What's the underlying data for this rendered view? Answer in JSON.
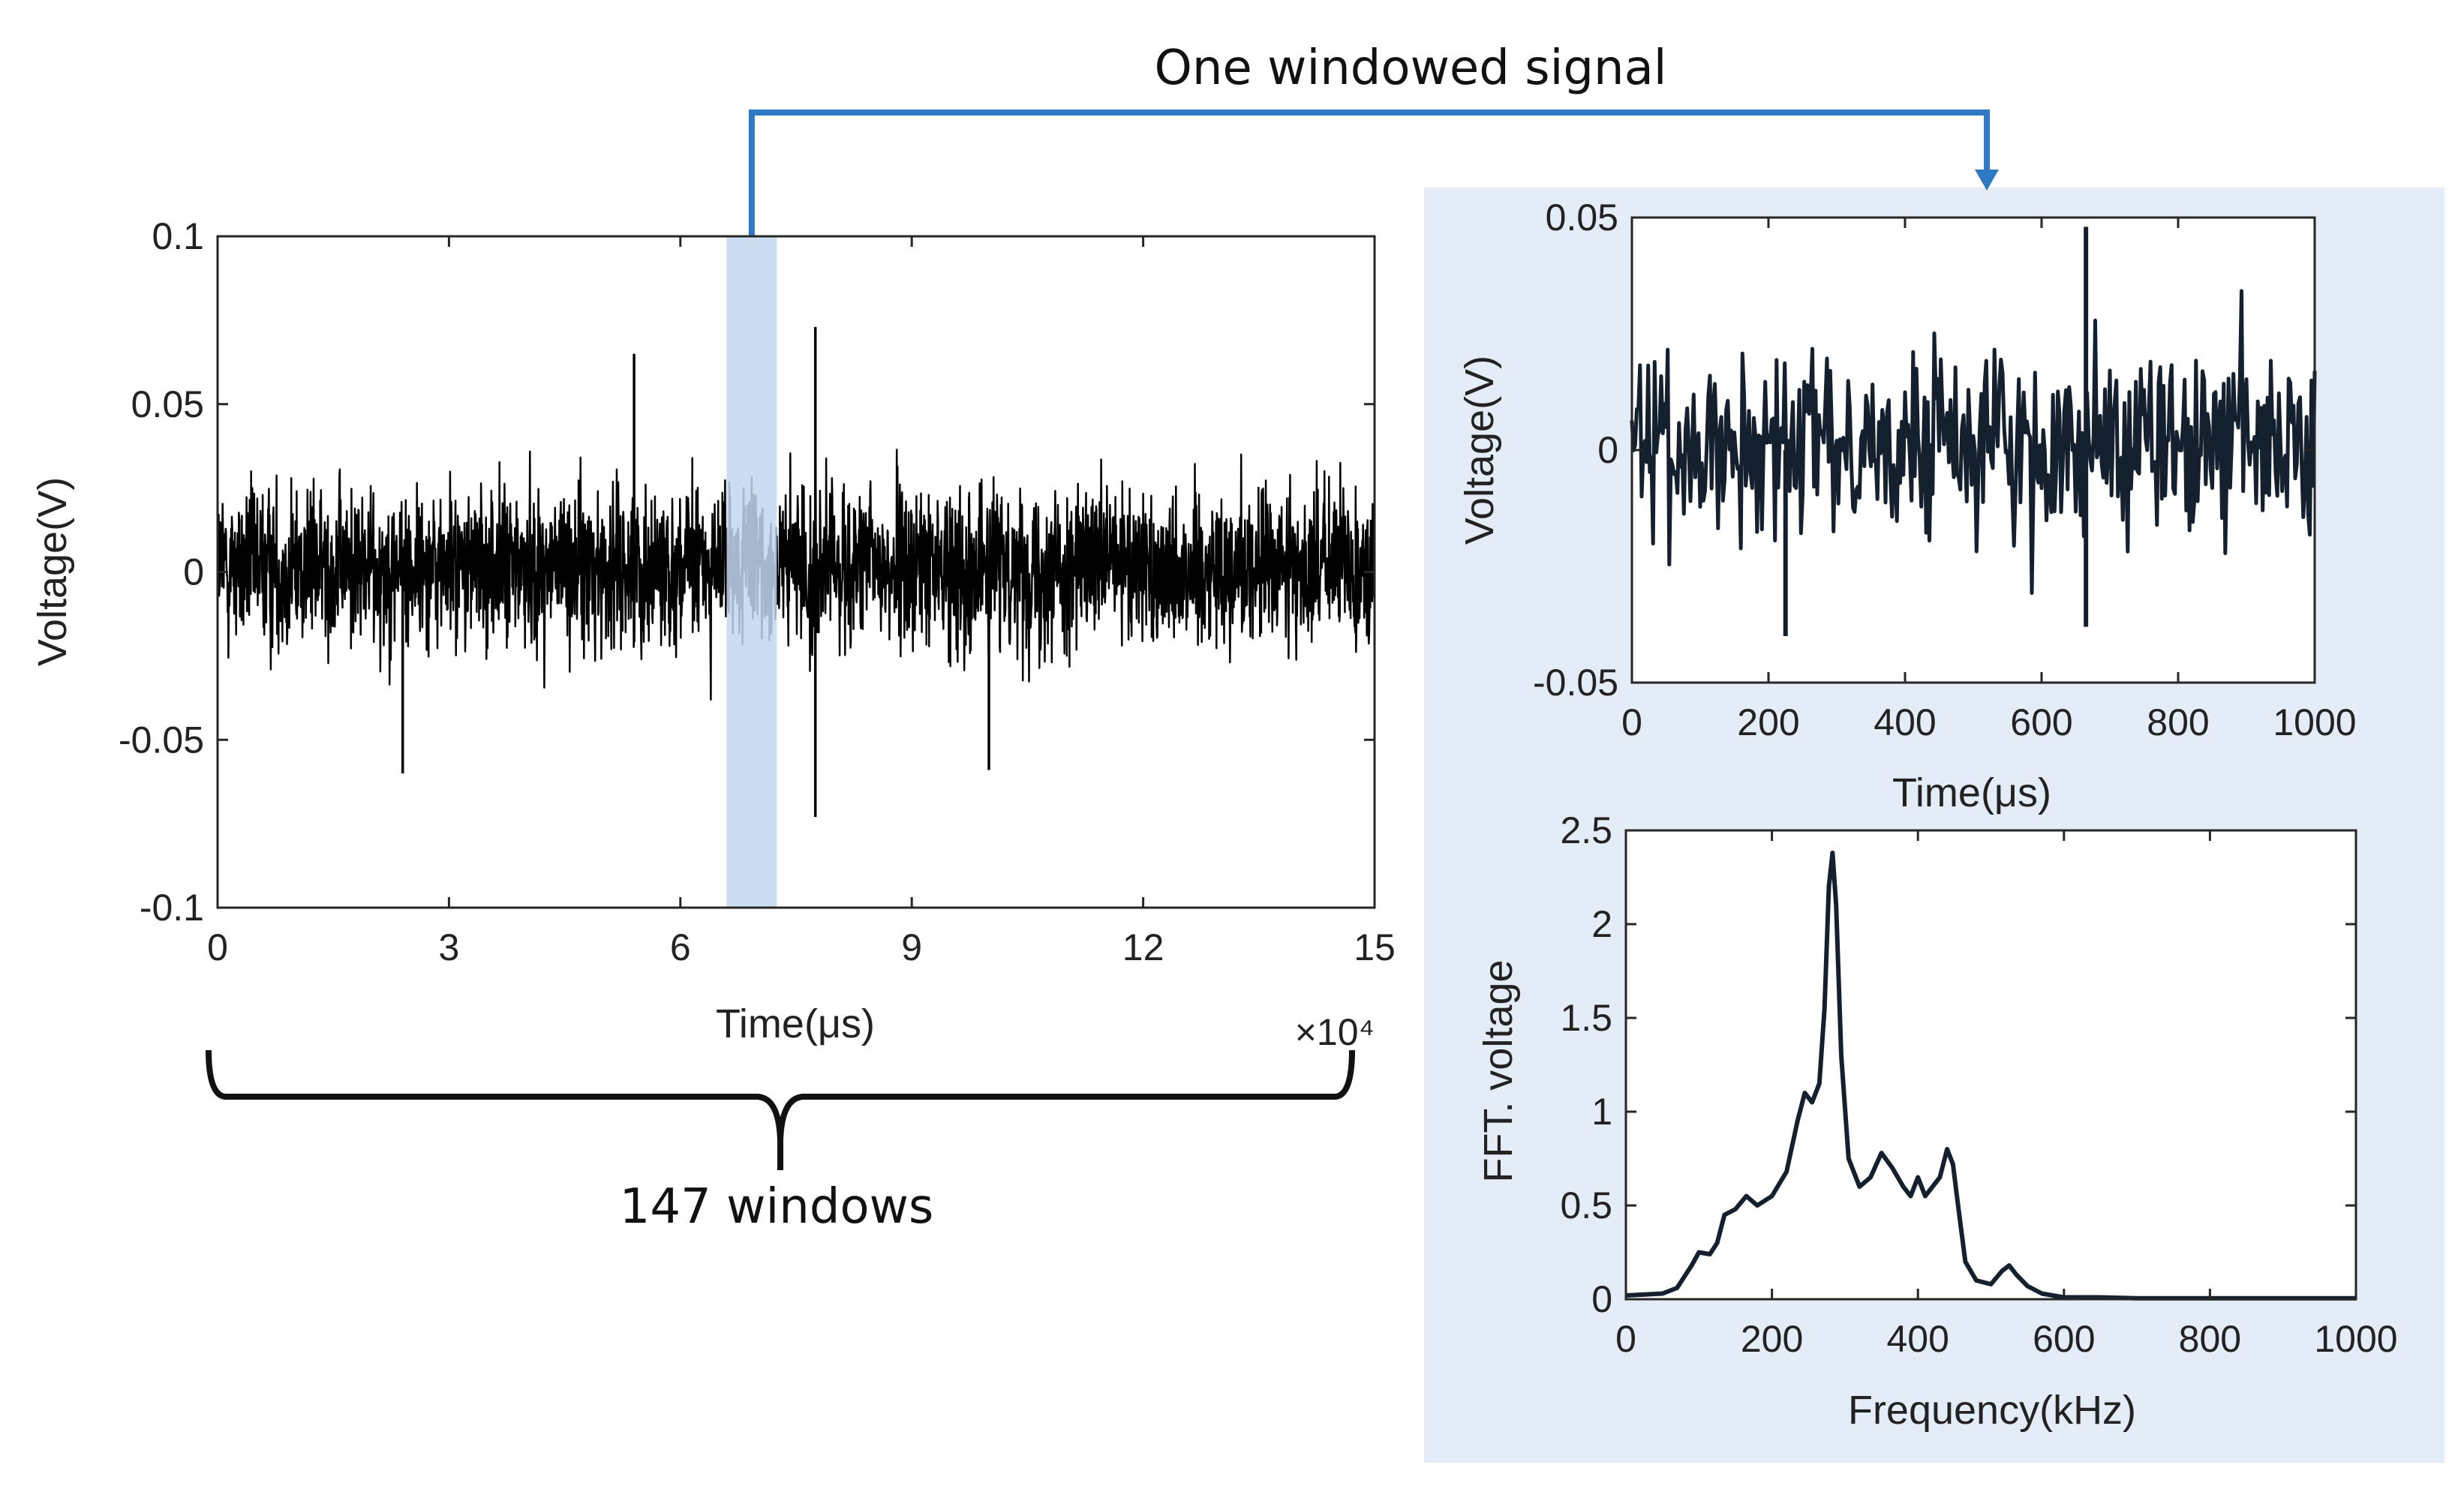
{
  "annotations": {
    "windowed_signal_label": "One windowed signal",
    "windows_label": "147 windows"
  },
  "colors": {
    "connector": "#2f78c4",
    "highlight_band": "#c3d6ee",
    "inset_panel": "#e4ecf7",
    "trace": "#000000",
    "trace_inset": "#15202e"
  },
  "chart_data": [
    {
      "type": "line",
      "title": "",
      "xlabel": "Time(μs)",
      "ylabel": "Voltage(V)",
      "x_exponent": "×10⁴",
      "xlim": [
        0,
        15
      ],
      "ylim": [
        -0.1,
        0.1
      ],
      "xticks": [
        0,
        3,
        6,
        9,
        12,
        15
      ],
      "xtick_labels": [
        "0",
        "3",
        "6",
        "9",
        "12",
        "15"
      ],
      "yticks": [
        -0.1,
        -0.05,
        0,
        0.05,
        0.1
      ],
      "ytick_labels": [
        "-0.1",
        "-0.05",
        "0",
        "0.05",
        "0.1"
      ],
      "grid": false,
      "series": [
        {
          "signal": "continuous noise-like voltage trace",
          "typical_envelope": [
            -0.035,
            0.038
          ],
          "peaks": [
            {
              "x": 5.4,
              "y": 0.065
            },
            {
              "x": 7.75,
              "y": 0.073
            },
            {
              "x": 7.75,
              "y": -0.073
            },
            {
              "x": 2.4,
              "y": -0.06
            },
            {
              "x": 10.0,
              "y": -0.059
            }
          ]
        }
      ],
      "highlighted_window": {
        "x_start": 6.6,
        "x_end": 7.25
      }
    },
    {
      "type": "line",
      "title": "",
      "xlabel": "Time(μs)",
      "ylabel": "Voltage(V)",
      "xlim": [
        0,
        1000
      ],
      "ylim": [
        -0.05,
        0.05
      ],
      "xticks": [
        0,
        200,
        400,
        600,
        800,
        1000
      ],
      "xtick_labels": [
        "0",
        "200",
        "400",
        "600",
        "800",
        "1000"
      ],
      "yticks": [
        -0.05,
        0,
        0.05
      ],
      "ytick_labels": [
        "-0.05",
        "0",
        "0.05"
      ],
      "grid": false,
      "series": [
        {
          "signal": "one windowed segment of the voltage trace",
          "typical_envelope": [
            -0.03,
            0.032
          ],
          "peaks": [
            {
              "x": 665,
              "y": 0.048
            },
            {
              "x": 665,
              "y": -0.038
            },
            {
              "x": 225,
              "y": -0.04
            }
          ]
        }
      ]
    },
    {
      "type": "line",
      "title": "",
      "xlabel": "Frequency(kHz)",
      "ylabel": "FFT. voltage",
      "xlim": [
        0,
        1000
      ],
      "ylim": [
        0,
        2.5
      ],
      "xticks": [
        0,
        200,
        400,
        600,
        800,
        1000
      ],
      "xtick_labels": [
        "0",
        "200",
        "400",
        "600",
        "800",
        "1000"
      ],
      "yticks": [
        0,
        0.5,
        1,
        1.5,
        2,
        2.5
      ],
      "ytick_labels": [
        "0",
        "0.5",
        "1",
        "1.5",
        "2",
        "2.5"
      ],
      "grid": false,
      "series": [
        {
          "x": [
            0,
            50,
            70,
            90,
            100,
            115,
            125,
            135,
            150,
            165,
            180,
            200,
            220,
            235,
            245,
            255,
            265,
            272,
            278,
            283,
            288,
            295,
            305,
            320,
            335,
            350,
            365,
            380,
            390,
            400,
            410,
            420,
            430,
            440,
            448,
            455,
            465,
            480,
            500,
            515,
            525,
            535,
            550,
            570,
            600,
            650,
            700,
            800,
            900,
            1000
          ],
          "y": [
            0.02,
            0.03,
            0.06,
            0.18,
            0.25,
            0.24,
            0.3,
            0.45,
            0.48,
            0.55,
            0.5,
            0.55,
            0.68,
            0.95,
            1.1,
            1.05,
            1.15,
            1.55,
            2.2,
            2.38,
            2.1,
            1.3,
            0.75,
            0.6,
            0.65,
            0.78,
            0.7,
            0.6,
            0.55,
            0.65,
            0.55,
            0.6,
            0.65,
            0.8,
            0.72,
            0.5,
            0.2,
            0.1,
            0.08,
            0.15,
            0.18,
            0.13,
            0.07,
            0.03,
            0.01,
            0.01,
            0.005,
            0.005,
            0.005,
            0.005
          ]
        }
      ]
    }
  ]
}
